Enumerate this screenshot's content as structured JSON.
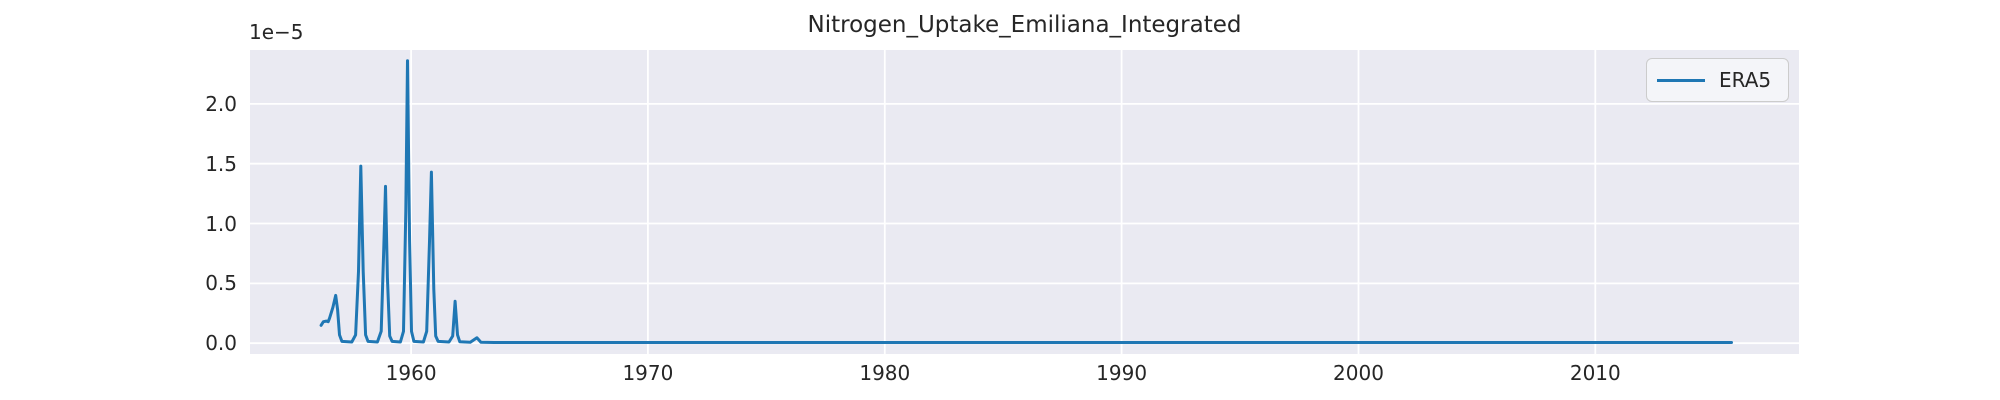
{
  "figure": {
    "title": "Nitrogen_Uptake_Emiliana_Integrated",
    "y_offset_label": "1e−5",
    "legend": {
      "position": "upper right",
      "entries": [
        {
          "label": "ERA5",
          "color": "#1f77b4"
        }
      ]
    },
    "colors": {
      "figure_bg": "#ffffff",
      "axes_bg": "#eaeaf2",
      "grid": "#ffffff",
      "text": "#262626",
      "legend_border": "#cccccc",
      "legend_bg": "#f4f5f9"
    }
  },
  "chart_data": {
    "type": "line",
    "title": "Nitrogen_Uptake_Emiliana_Integrated",
    "xlabel": "",
    "ylabel": "",
    "y_scale_factor": 1e-05,
    "y_offset_label": "1e−5",
    "grid": true,
    "legend_position": "upper right",
    "xlim": [
      1953.2,
      2018.6
    ],
    "ylim": [
      -0.09,
      2.45
    ],
    "xticks": [
      1960,
      1970,
      1980,
      1990,
      2000,
      2010
    ],
    "xtick_labels": [
      "1960",
      "1970",
      "1980",
      "1990",
      "2000",
      "2010"
    ],
    "yticks": [
      0.0,
      0.5,
      1.0,
      1.5,
      2.0
    ],
    "ytick_labels": [
      "0.0",
      "0.5",
      "1.0",
      "1.5",
      "2.0"
    ],
    "series": [
      {
        "name": "ERA5",
        "color": "#1f77b4",
        "units_note": "y values in multiples of 1e-5",
        "points": [
          [
            1956.2,
            0.15
          ],
          [
            1956.3,
            0.18
          ],
          [
            1956.42,
            0.185
          ],
          [
            1956.5,
            0.18
          ],
          [
            1956.56,
            0.21
          ],
          [
            1956.7,
            0.3
          ],
          [
            1956.82,
            0.4
          ],
          [
            1956.9,
            0.28
          ],
          [
            1956.98,
            0.07
          ],
          [
            1957.08,
            0.015
          ],
          [
            1957.5,
            0.01
          ],
          [
            1957.66,
            0.07
          ],
          [
            1957.78,
            0.6
          ],
          [
            1957.88,
            1.48
          ],
          [
            1957.98,
            0.6
          ],
          [
            1958.08,
            0.07
          ],
          [
            1958.18,
            0.015
          ],
          [
            1958.58,
            0.01
          ],
          [
            1958.74,
            0.1
          ],
          [
            1958.85,
            0.8
          ],
          [
            1958.92,
            1.31
          ],
          [
            1959.0,
            0.55
          ],
          [
            1959.1,
            0.06
          ],
          [
            1959.2,
            0.015
          ],
          [
            1959.55,
            0.01
          ],
          [
            1959.68,
            0.1
          ],
          [
            1959.78,
            1.1
          ],
          [
            1959.85,
            2.36
          ],
          [
            1959.94,
            0.85
          ],
          [
            1960.02,
            0.1
          ],
          [
            1960.12,
            0.015
          ],
          [
            1960.52,
            0.01
          ],
          [
            1960.66,
            0.1
          ],
          [
            1960.78,
            0.85
          ],
          [
            1960.86,
            1.43
          ],
          [
            1960.96,
            0.45
          ],
          [
            1961.04,
            0.06
          ],
          [
            1961.14,
            0.015
          ],
          [
            1961.6,
            0.01
          ],
          [
            1961.76,
            0.06
          ],
          [
            1961.86,
            0.35
          ],
          [
            1961.96,
            0.07
          ],
          [
            1962.06,
            0.012
          ],
          [
            1962.5,
            0.008
          ],
          [
            1962.78,
            0.045
          ],
          [
            1962.95,
            0.008
          ],
          [
            1963.5,
            0.006
          ],
          [
            1965.0,
            0.006
          ],
          [
            1970.0,
            0.006
          ],
          [
            1975.0,
            0.006
          ],
          [
            1980.0,
            0.006
          ],
          [
            1985.0,
            0.006
          ],
          [
            1990.0,
            0.006
          ],
          [
            1995.0,
            0.006
          ],
          [
            2000.0,
            0.006
          ],
          [
            2005.0,
            0.006
          ],
          [
            2010.0,
            0.006
          ],
          [
            2015.75,
            0.006
          ]
        ]
      }
    ]
  }
}
